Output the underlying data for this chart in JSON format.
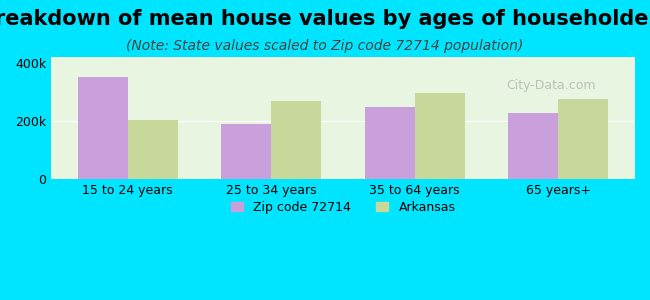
{
  "title": "Breakdown of mean house values by ages of householders",
  "subtitle": "(Note: State values scaled to Zip code 72714 population)",
  "categories": [
    "15 to 24 years",
    "25 to 34 years",
    "35 to 64 years",
    "65 years+"
  ],
  "zip_values": [
    350000,
    190000,
    248000,
    228000
  ],
  "state_values": [
    205000,
    270000,
    295000,
    275000
  ],
  "zip_color": "#c9a0dc",
  "state_color": "#c8d89a",
  "background_outer": "#00e5ff",
  "background_inner": "#e8f5e0",
  "ylim": [
    0,
    420000
  ],
  "ytick_labels": [
    "0",
    "200k",
    "400k"
  ],
  "zip_label": "Zip code 72714",
  "state_label": "Arkansas",
  "watermark": "City-Data.com",
  "title_fontsize": 15,
  "subtitle_fontsize": 10,
  "bar_width": 0.35
}
